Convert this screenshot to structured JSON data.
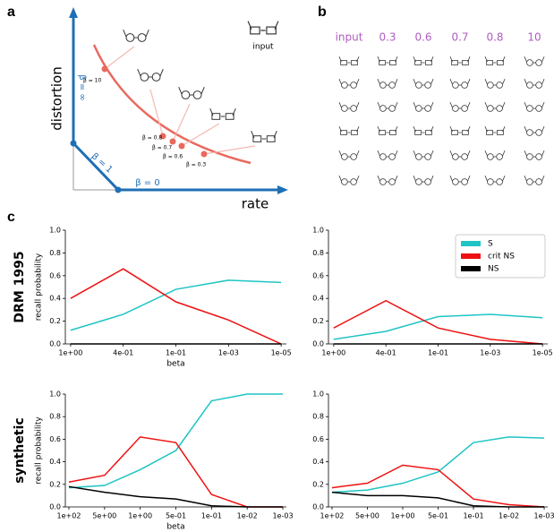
{
  "panel_a": {
    "label": "a",
    "y_axis": "distortion",
    "x_axis": "rate",
    "input": "input",
    "beta_labels": [
      "β = 10",
      "β = 0.8",
      "β = 0.7",
      "β = 0.6",
      "β = 0.3"
    ],
    "beta_inf": "β = ∞",
    "beta_one": "β = 1",
    "beta_zero": "β = 0"
  },
  "panel_b": {
    "label": "b",
    "columns": [
      "input",
      "0.3",
      "0.6",
      "0.7",
      "0.8",
      "10"
    ]
  },
  "panel_c": {
    "label": "c"
  },
  "chart_data": [
    {
      "type": "line",
      "row_label": "DRM 1995",
      "y_label": "recall probability",
      "x_label": "beta",
      "categories": [
        "1e+00",
        "4e-01",
        "1e-01",
        "1e-03",
        "1e-05"
      ],
      "ylim": [
        0,
        1
      ],
      "yticks": [
        {
          "value": 0,
          "label": "0.0"
        },
        0.2,
        0.4,
        0.6,
        0.8,
        {
          "value": 1,
          "label": "1.0"
        }
      ],
      "series": [
        {
          "name": "S",
          "color": "#1fc4c4",
          "values": [
            0.12,
            0.26,
            0.48,
            0.56,
            0.54
          ]
        },
        {
          "name": "crit NS",
          "color": "#ee1111",
          "values": [
            0.4,
            0.66,
            0.37,
            0.21,
            0.0
          ]
        },
        {
          "name": "NS",
          "color": "#000000",
          "values": [
            0,
            0,
            0,
            0,
            0
          ]
        }
      ]
    },
    {
      "type": "line",
      "legend": "upper right",
      "categories": [
        "1e+00",
        "4e-01",
        "1e-01",
        "1e-03",
        "1e-05"
      ],
      "ylim": [
        0,
        1
      ],
      "yticks": [
        {
          "value": 0,
          "label": "0.0"
        },
        0.2,
        0.4,
        0.6,
        0.8,
        {
          "value": 1,
          "label": "1.0"
        }
      ],
      "series": [
        {
          "name": "S",
          "color": "#1fc4c4",
          "values": [
            0.04,
            0.11,
            0.24,
            0.26,
            0.23
          ]
        },
        {
          "name": "crit NS",
          "color": "#ee1111",
          "values": [
            0.14,
            0.38,
            0.14,
            0.04,
            0.0
          ]
        },
        {
          "name": "NS",
          "color": "#000000",
          "values": [
            0,
            0,
            0,
            0,
            0
          ]
        }
      ]
    },
    {
      "type": "line",
      "row_label": "synthetic",
      "y_label": "recall probability",
      "x_label": "beta",
      "categories": [
        "1e+02",
        "5e+00",
        "1e+00",
        "5e-01",
        "1e-01",
        "1e-02",
        "1e-03"
      ],
      "ylim": [
        0,
        1
      ],
      "yticks": [
        {
          "value": 0,
          "label": "0.0"
        },
        0.2,
        0.4,
        0.6,
        0.8,
        {
          "value": 1,
          "label": "1.0"
        }
      ],
      "series": [
        {
          "name": "S",
          "color": "#1fc4c4",
          "values": [
            0.17,
            0.19,
            0.33,
            0.5,
            0.94,
            1.0,
            1.0
          ]
        },
        {
          "name": "crit NS",
          "color": "#ee1111",
          "values": [
            0.22,
            0.28,
            0.62,
            0.57,
            0.11,
            0.0,
            0.0
          ]
        },
        {
          "name": "NS",
          "color": "#000000",
          "values": [
            0.18,
            0.13,
            0.09,
            0.07,
            0.01,
            0.0,
            0.0
          ]
        }
      ]
    },
    {
      "type": "line",
      "categories": [
        "1e+02",
        "5e+00",
        "1e+00",
        "5e-01",
        "1e-01",
        "1e-02",
        "1e-03"
      ],
      "ylim": [
        0,
        1
      ],
      "yticks": [
        {
          "value": 0,
          "label": "0.0"
        },
        0.2,
        0.4,
        0.6,
        0.8,
        {
          "value": 1,
          "label": "1.0"
        }
      ],
      "series": [
        {
          "name": "S",
          "color": "#1fc4c4",
          "values": [
            0.13,
            0.15,
            0.21,
            0.31,
            0.57,
            0.62,
            0.61
          ]
        },
        {
          "name": "crit NS",
          "color": "#ee1111",
          "values": [
            0.17,
            0.21,
            0.37,
            0.33,
            0.07,
            0.02,
            0.0
          ]
        },
        {
          "name": "NS",
          "color": "#000000",
          "values": [
            0.13,
            0.1,
            0.1,
            0.08,
            0.01,
            0.0,
            0.0
          ]
        }
      ]
    }
  ]
}
